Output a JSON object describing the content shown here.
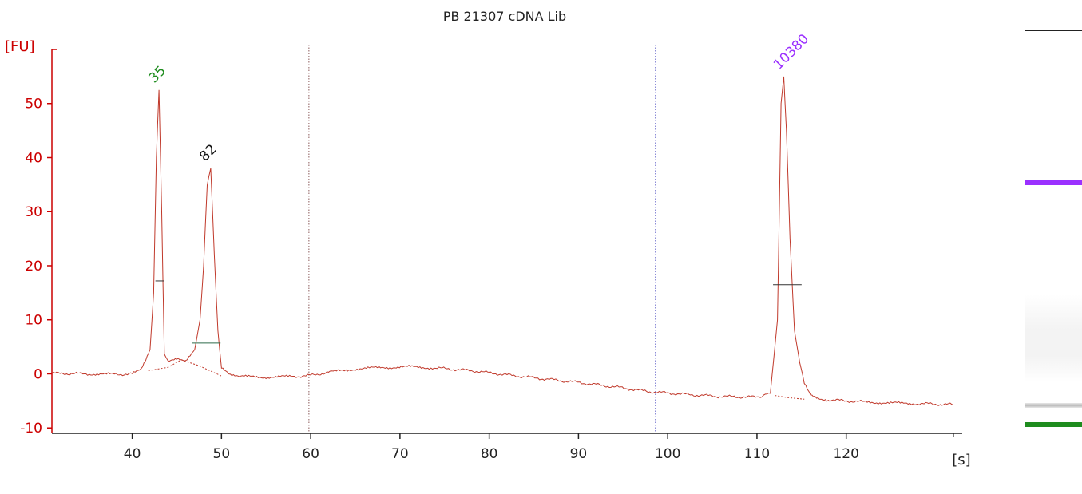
{
  "chart_data": {
    "type": "line",
    "title": "PB 21307 cDNA Lib",
    "xlabel": "[s]",
    "ylabel": "[FU]",
    "xlim": [
      31,
      133
    ],
    "ylim": [
      -11,
      60
    ],
    "xticks": [
      40,
      50,
      60,
      70,
      80,
      90,
      100,
      110,
      120
    ],
    "yticks": [
      -10,
      0,
      10,
      20,
      30,
      40,
      50
    ],
    "grid": false,
    "legend": "none",
    "series": [
      {
        "color": "#c0392b",
        "x": [
          31,
          35,
          38,
          40,
          41,
          41.5,
          42,
          42.4,
          42.7,
          43.0,
          43.3,
          43.6,
          44,
          45,
          46,
          47,
          47.6,
          48.0,
          48.4,
          48.8,
          49.2,
          49.6,
          50,
          51,
          52,
          55,
          58,
          60,
          62,
          65,
          68,
          71,
          74,
          78,
          82,
          86,
          90,
          94,
          98,
          102,
          106,
          110,
          111.5,
          112.3,
          112.7,
          113.0,
          113.3,
          113.7,
          114.2,
          114.8,
          115.3,
          116,
          117,
          118,
          120,
          122,
          125,
          128,
          130,
          132
        ],
        "y": [
          0.1,
          0.0,
          -0.1,
          0.0,
          0.8,
          2.5,
          4.5,
          15,
          40,
          52.5,
          30,
          3.5,
          2.5,
          3.0,
          2.5,
          4.5,
          10,
          20,
          35,
          38,
          22,
          8,
          1,
          -0.3,
          -0.5,
          -0.6,
          -0.5,
          -0.3,
          0.3,
          0.9,
          1.2,
          1.3,
          1.1,
          0.6,
          -0.2,
          -0.9,
          -1.6,
          -2.4,
          -3.3,
          -3.8,
          -4.2,
          -4.3,
          -3.6,
          10,
          50,
          55,
          45,
          25,
          8,
          2,
          -1.5,
          -3.8,
          -4.5,
          -4.8,
          -5.0,
          -5.2,
          -5.4,
          -5.5,
          -5.6,
          -5.7
        ]
      }
    ],
    "peaks": [
      {
        "label": "35",
        "x": 43.0,
        "y": 52.5,
        "color": "#1e8c1e",
        "mid_y": 17.2,
        "mid_x0": 42.6,
        "mid_x1": 43.6
      },
      {
        "label": "82",
        "x": 48.7,
        "y": 38.0,
        "color": "#111111",
        "mid_y": 5.7,
        "mid_x0": 46.7,
        "mid_x1": 49.9
      },
      {
        "label": "10380",
        "x": 113.0,
        "y": 55.0,
        "color": "#9b30ff",
        "mid_y": 16.5,
        "mid_x0": 111.8,
        "mid_x1": 115.0
      }
    ],
    "baselines": [
      {
        "x": [
          41.8,
          44.0,
          45.5,
          47.5,
          50.0
        ],
        "y": [
          0.6,
          1.2,
          2.6,
          1.5,
          -0.4
        ]
      },
      {
        "x": [
          112.0,
          113.5,
          115.3
        ],
        "y": [
          -4.0,
          -4.4,
          -4.7
        ]
      }
    ],
    "markers": [
      {
        "x": 59.8,
        "color": "#8b5a5a"
      },
      {
        "x": 98.6,
        "color": "#8a8ad6"
      }
    ]
  },
  "gel": {
    "bands": [
      {
        "pos": 0.333,
        "color": "#9b30ff",
        "kind": "marker"
      },
      {
        "pos": 0.822,
        "color": "#b8b8b8",
        "kind": "sample"
      },
      {
        "pos": 0.865,
        "color": "#1e8c1e",
        "kind": "marker"
      }
    ]
  }
}
